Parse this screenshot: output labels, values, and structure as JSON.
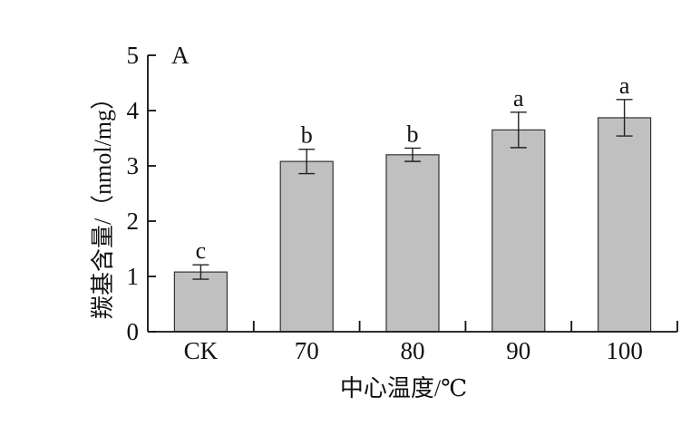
{
  "chart_data": {
    "type": "bar",
    "panel_label": "A",
    "categories": [
      "CK",
      "70",
      "80",
      "90",
      "100"
    ],
    "values": [
      1.08,
      3.08,
      3.2,
      3.65,
      3.87
    ],
    "errors": [
      0.13,
      0.22,
      0.12,
      0.32,
      0.33
    ],
    "significance_labels": [
      "c",
      "b",
      "b",
      "a",
      "a"
    ],
    "xlabel": "中心温度/℃",
    "ylabel": "羰基含量/（nmol/mg）",
    "ylim": [
      0,
      5
    ],
    "yticks": [
      "0",
      "1",
      "2",
      "3",
      "4",
      "5"
    ],
    "grid": false,
    "colors": {
      "bar_fill": "#c0c0c0",
      "bar_stroke": "#333333",
      "axis": "#111111"
    }
  }
}
